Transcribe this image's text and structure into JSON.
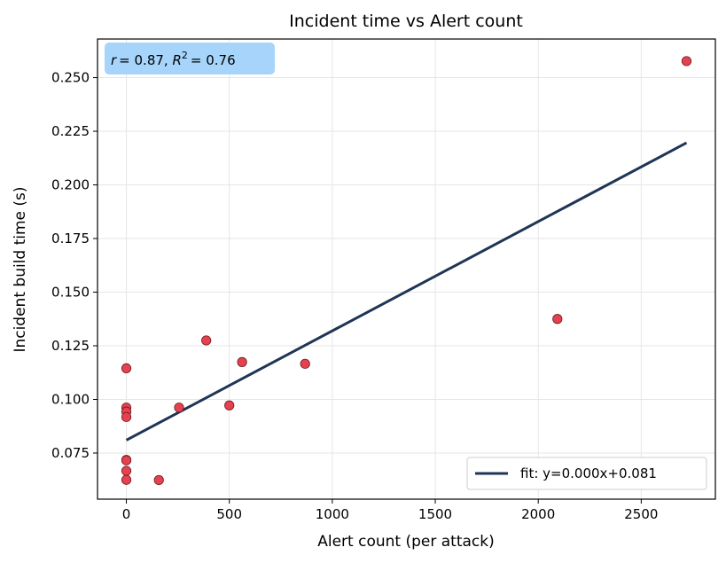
{
  "chart_data": {
    "type": "scatter",
    "title": "Incident time vs Alert count",
    "xlabel": "Alert count (per attack)",
    "ylabel": "Incident build time (s)",
    "xlim": [
      -140,
      2860
    ],
    "ylim": [
      0.0535,
      0.268
    ],
    "x_ticks": [
      0,
      500,
      1000,
      1500,
      2000,
      2500
    ],
    "y_ticks": [
      0.075,
      0.1,
      0.125,
      0.15,
      0.175,
      0.2,
      0.225,
      0.25
    ],
    "x_tick_labels": [
      "0",
      "500",
      "1000",
      "1500",
      "2000",
      "2500"
    ],
    "y_tick_labels": [
      "0.075",
      "0.100",
      "0.125",
      "0.150",
      "0.175",
      "0.200",
      "0.225",
      "0.250"
    ],
    "grid": true,
    "points": [
      {
        "x": 0,
        "y": 0.1145
      },
      {
        "x": 0,
        "y": 0.0962
      },
      {
        "x": 0,
        "y": 0.0943
      },
      {
        "x": 0,
        "y": 0.0918
      },
      {
        "x": 0,
        "y": 0.0718
      },
      {
        "x": 0,
        "y": 0.0716
      },
      {
        "x": 0,
        "y": 0.0667
      },
      {
        "x": 0,
        "y": 0.0625
      },
      {
        "x": 158,
        "y": 0.0624
      },
      {
        "x": 256,
        "y": 0.0962
      },
      {
        "x": 388,
        "y": 0.1275
      },
      {
        "x": 500,
        "y": 0.0972
      },
      {
        "x": 562,
        "y": 0.1174
      },
      {
        "x": 868,
        "y": 0.1166
      },
      {
        "x": 2093,
        "y": 0.1375
      },
      {
        "x": 2720,
        "y": 0.2577
      }
    ],
    "fit_line": {
      "x": [
        0,
        2720
      ],
      "y": [
        0.081,
        0.2196
      ]
    },
    "legend": {
      "label": "fit: y=0.000x+0.081",
      "placement": "lower-right"
    },
    "stats_label": {
      "r_prefix": "r",
      "r_value": "= 0.87, ",
      "r2_prefix": "R",
      "r2_exp": "2",
      "r2_value": "= 0.76"
    },
    "colors": {
      "points": "#e5414e",
      "point_edge": "#6b1a22",
      "fit": "#1f3556",
      "stats_box": "#a6d4fa",
      "grid": "#e6e6e6"
    }
  }
}
